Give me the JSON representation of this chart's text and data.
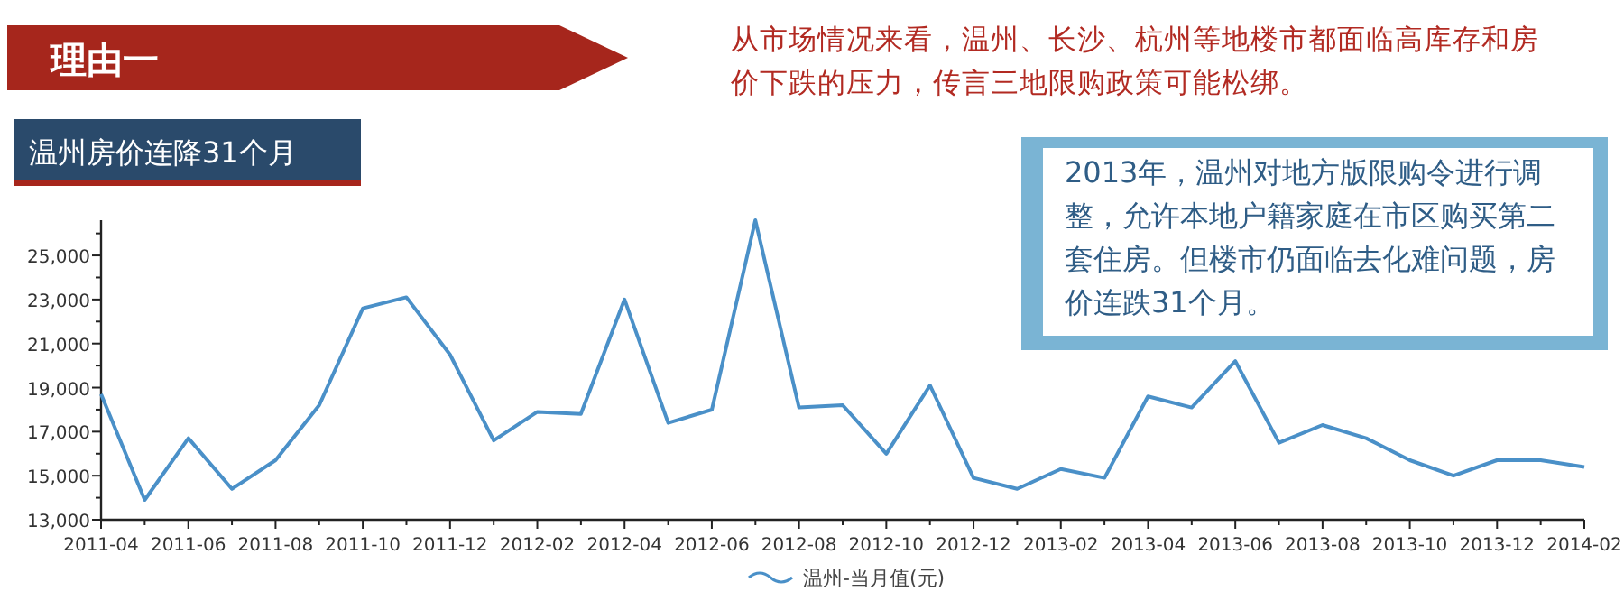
{
  "chart_data": {
    "type": "line",
    "title": "温州房价连降31个月",
    "annotations": [
      "理由一",
      "从市场情况来看，温州、长沙、杭州等地楼市都面临高库存和房价下跌的压力，传言三地限购政策可能松绑。",
      "2013年，温州对地方版限购令进行调整，允许本地户籍家庭在市区购买第二套住房。但楼市仍面临去化难问题，房价连跌31个月。"
    ],
    "categories": [
      "2011-04",
      null,
      "2011-06",
      null,
      "2011-08",
      null,
      "2011-10",
      null,
      "2011-12",
      null,
      "2012-02",
      null,
      "2012-04",
      null,
      "2012-06",
      null,
      "2012-08",
      null,
      "2012-10",
      null,
      "2012-12",
      null,
      "2013-02",
      null,
      "2013-04",
      null,
      "2013-06",
      null,
      "2013-08",
      null,
      "2013-10",
      null,
      "2013-12",
      null,
      "2014-02"
    ],
    "series": [
      {
        "name": "温州-当月值(元)",
        "color": "#4a90c8",
        "values": [
          18700,
          13900,
          16700,
          14400,
          15700,
          18200,
          22600,
          23100,
          20500,
          16600,
          17900,
          17800,
          23000,
          17400,
          18000,
          26600,
          18100,
          18200,
          16000,
          19100,
          14900,
          14400,
          15300,
          14900,
          18600,
          18100,
          20200,
          16500,
          17300,
          16700,
          15700,
          15000,
          15700,
          15700,
          15400
        ]
      }
    ],
    "ylim": [
      13000,
      26600
    ],
    "yticks": [
      {
        "value": 13000,
        "label": "13,000"
      },
      {
        "value": 14000,
        "label": null
      },
      {
        "value": 15000,
        "label": "15,000"
      },
      {
        "value": 16000,
        "label": null
      },
      {
        "value": 17000,
        "label": "17,000"
      },
      {
        "value": 18000,
        "label": null
      },
      {
        "value": 19000,
        "label": "19,000"
      },
      {
        "value": 20000,
        "label": null
      },
      {
        "value": 21000,
        "label": "21,000"
      },
      {
        "value": 22000,
        "label": null
      },
      {
        "value": 23000,
        "label": "23,000"
      },
      {
        "value": 24000,
        "label": null
      },
      {
        "value": 25000,
        "label": "25,000"
      },
      {
        "value": 26000,
        "label": null
      }
    ],
    "grid": false,
    "legend": "bottom",
    "marker": "none",
    "line_style": "solid"
  }
}
